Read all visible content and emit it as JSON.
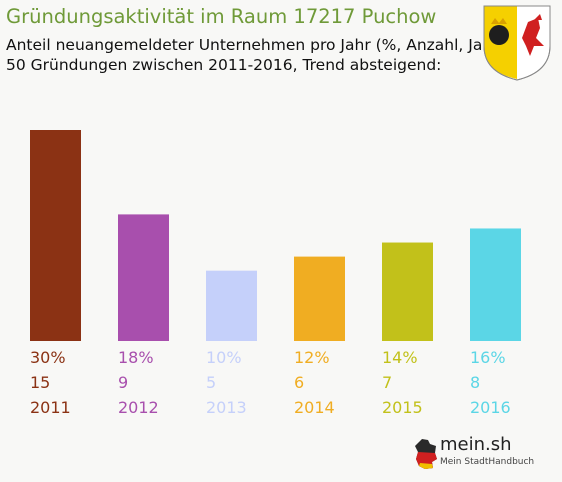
{
  "header": {
    "title": "Gründungsaktivität im Raum 17217 Puchow",
    "subtitle_line1": "Anteil neuangemeldeter Unternehmen pro Jahr (%, Anzahl, Jahr)",
    "subtitle_line2": "50 Gründungen zwischen 2011-2016, Trend absteigend:"
  },
  "crest": {
    "name": "coat-of-arms",
    "colors": [
      "#f5d000",
      "#ffffff",
      "#d02020",
      "#202020"
    ]
  },
  "logo": {
    "text": "mein.sh",
    "tagline": "Mein StadtHandbuch"
  },
  "chart_data": {
    "type": "bar",
    "categories": [
      "2011",
      "2012",
      "2013",
      "2014",
      "2015",
      "2016"
    ],
    "values": [
      30,
      18,
      10,
      12,
      14,
      16
    ],
    "counts": [
      15,
      9,
      5,
      6,
      7,
      8
    ],
    "percent_labels": [
      "30%",
      "18%",
      "10%",
      "12%",
      "14%",
      "16%"
    ],
    "colors": [
      "#8b3214",
      "#a84fad",
      "#c5d0fa",
      "#f0ad22",
      "#c2c11a",
      "#5bd6e6"
    ],
    "ylim": [
      0,
      30
    ],
    "grid": false,
    "legend": "none"
  }
}
